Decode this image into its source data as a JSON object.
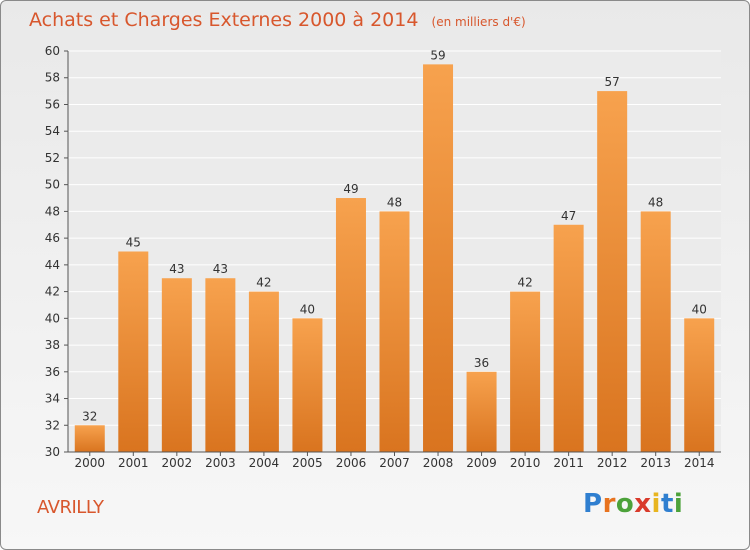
{
  "title": "Achats et Charges Externes 2000 à 2014",
  "unit_note": "(en milliers d'€)",
  "location": "AVRILLY",
  "brand": {
    "letters": [
      "P",
      "r",
      "o",
      "x",
      "i",
      "t",
      "i"
    ],
    "colors": [
      "#2f7fd0",
      "#e8731f",
      "#4ca23a",
      "#d93a2b",
      "#e8b51f",
      "#2f7fd0",
      "#4ca23a"
    ]
  },
  "colors": {
    "title": "#d8572d",
    "bar_top": "#f7a24e",
    "bar_bottom": "#d9741f",
    "grid": "#ffffff",
    "axis": "#555555"
  },
  "chart_data": {
    "type": "bar",
    "categories": [
      "2000",
      "2001",
      "2002",
      "2003",
      "2004",
      "2005",
      "2006",
      "2007",
      "2008",
      "2009",
      "2010",
      "2011",
      "2012",
      "2013",
      "2014"
    ],
    "values": [
      32,
      45,
      43,
      43,
      42,
      40,
      49,
      48,
      59,
      36,
      42,
      47,
      57,
      48,
      40
    ],
    "ylim": [
      30,
      60
    ],
    "yticks": [
      30,
      32,
      34,
      36,
      38,
      40,
      42,
      44,
      46,
      48,
      50,
      52,
      54,
      56,
      58,
      60
    ],
    "data_labels": true,
    "grid": true
  }
}
